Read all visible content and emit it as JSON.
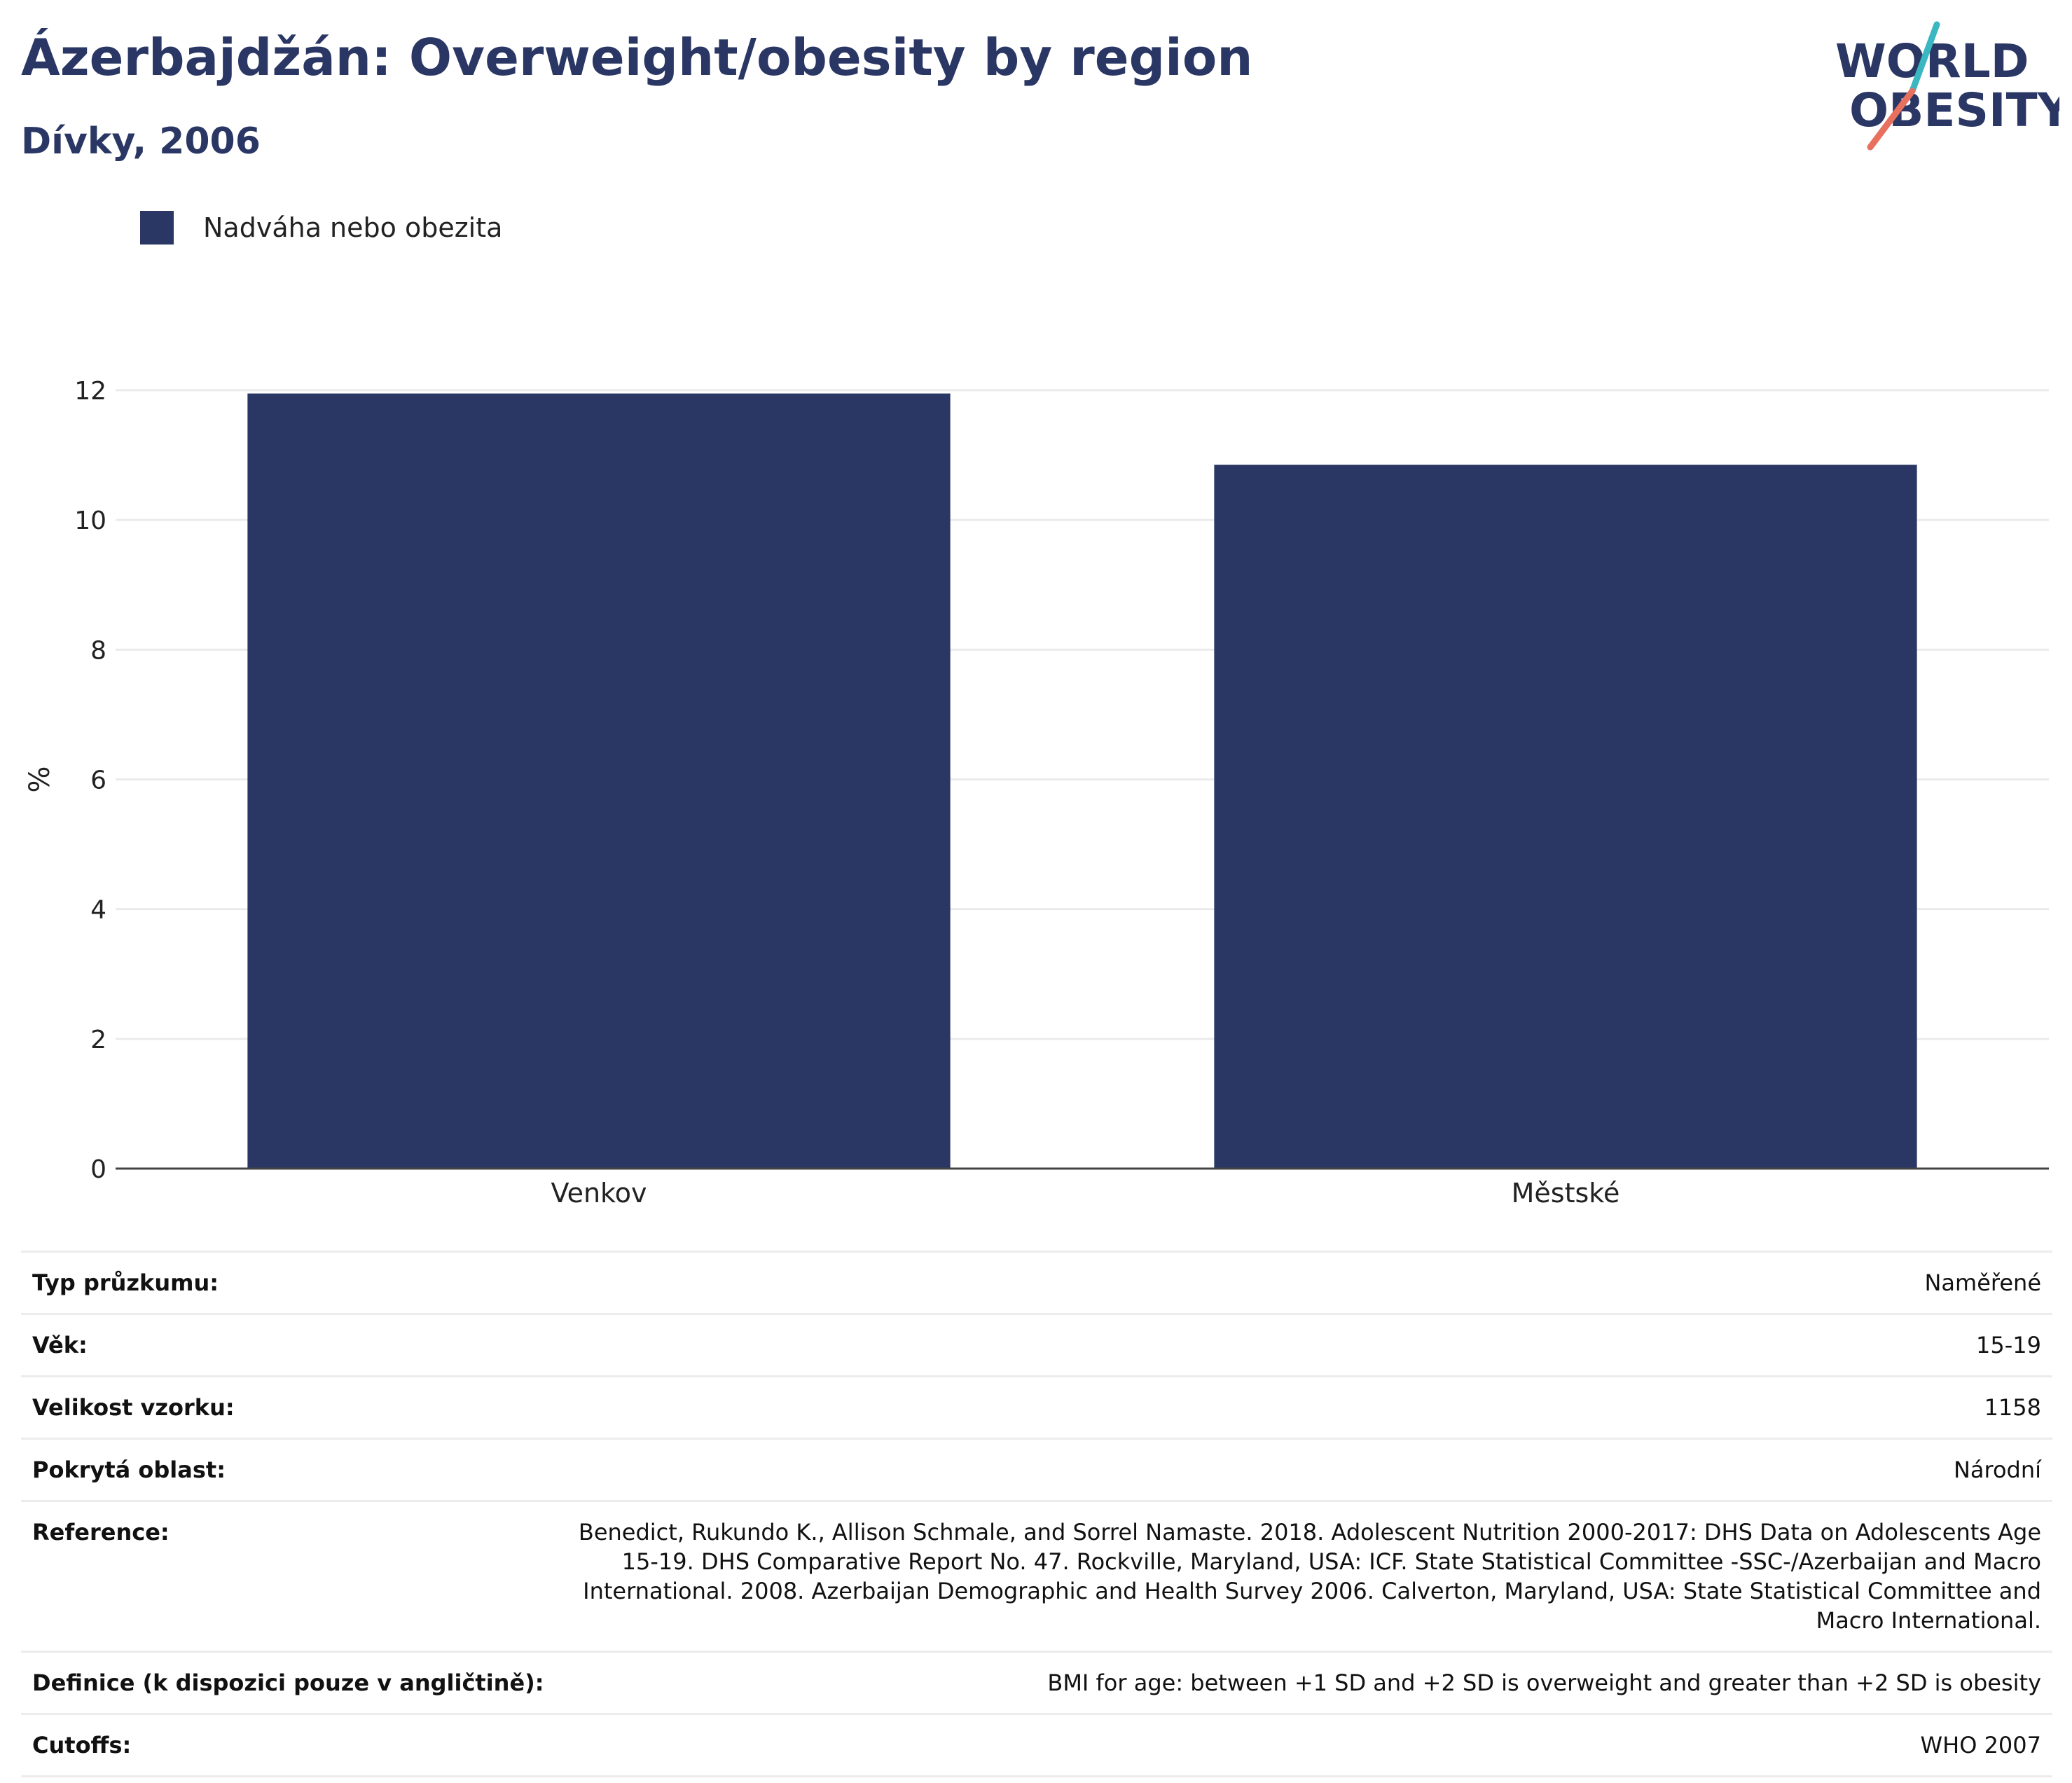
{
  "header": {
    "title": "Ázerbajdžán: Overweight/obesity by region",
    "subtitle": "Dívky, 2006"
  },
  "logo": {
    "line1": "WORLD",
    "line2": "OBESITY",
    "colors": {
      "text": "#2a3764",
      "slash_top": "#3ab7c0",
      "slash_bottom": "#e8705f"
    }
  },
  "legend": {
    "label": "Nadváha nebo obezita",
    "color": "#2a3764"
  },
  "chart_data": {
    "type": "bar",
    "categories": [
      "Venkov",
      "Městské"
    ],
    "series": [
      {
        "name": "Nadváha nebo obezita",
        "values": [
          11.95,
          10.85
        ],
        "color": "#2a3764"
      }
    ],
    "ylabel": "%",
    "xlabel": "",
    "ylim": [
      0,
      12
    ],
    "yticks": [
      0,
      2,
      4,
      6,
      8,
      10,
      12
    ],
    "grid": true,
    "legend_position": "top-left"
  },
  "info": [
    {
      "key": "Typ průzkumu:",
      "value": "Naměřené"
    },
    {
      "key": "Věk:",
      "value": "15-19"
    },
    {
      "key": "Velikost vzorku:",
      "value": "1158"
    },
    {
      "key": "Pokrytá oblast:",
      "value": "Národní"
    },
    {
      "key": "Reference:",
      "value": "Benedict, Rukundo K., Allison Schmale, and Sorrel Namaste. 2018. Adolescent Nutrition 2000-2017: DHS Data on Adolescents Age 15-19. DHS Comparative Report No. 47. Rockville, Maryland, USA: ICF. State Statistical Committee -SSC-/Azerbaijan and Macro International. 2008. Azerbaijan Demographic and Health Survey 2006. Calverton, Maryland, USA: State Statistical Committee and Macro International."
    },
    {
      "key": "Definice (k dispozici pouze v angličtině):",
      "value": "BMI for age: between +1 SD and +2 SD is overweight and greater than +2 SD is obesity"
    },
    {
      "key": "Cutoffs:",
      "value": "WHO 2007"
    }
  ]
}
